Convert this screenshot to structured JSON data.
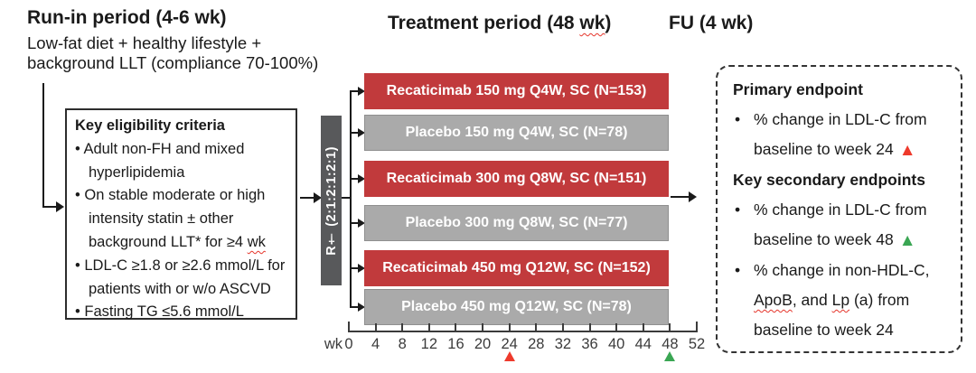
{
  "colors": {
    "recaticimab_red": "#c13a3c",
    "placebo_gray": "#aaaaaa",
    "randomization_gray": "#58595b",
    "triangle_red": "#ee3a2c",
    "triangle_green": "#3aa653",
    "squiggle_red": "#e5352b"
  },
  "header": {
    "run_in_title": "Run-in period (4-6 wk)",
    "run_in_line1": "Low-fat diet + healthy lifestyle +",
    "run_in_line2": "background LLT (compliance 70-100%)",
    "treatment_title_pre": "Treatment period (48 ",
    "treatment_title_wavy": "wk",
    "treatment_title_post": ")",
    "fu_title": "FU (4 wk)"
  },
  "eligibility": {
    "title": "Key eligibility criteria",
    "lines": [
      {
        "text": "• Adult non-FH and mixed"
      },
      {
        "text": "hyperlipidemia"
      },
      {
        "text": "• On stable moderate or high"
      },
      {
        "text": "intensity statin ± other"
      },
      {
        "pre": "background LLT* for ≥4 ",
        "wavy": "wk"
      },
      {
        "text": "• LDL-C ≥1.8 or ≥2.6 mmol/L for"
      },
      {
        "text": "patients with or w/o ASCVD"
      },
      {
        "text": "• Fasting TG ≤5.6 mmol/L"
      }
    ]
  },
  "randomization": {
    "label": "R† (2:1:2:1:2:1)"
  },
  "arms": [
    {
      "label": "Recaticimab 150 mg Q4W, SC (N=153)",
      "type": "recaticimab"
    },
    {
      "label": "Placebo 150 mg Q4W, SC (N=78)",
      "type": "placebo"
    },
    {
      "label": "Recaticimab 300 mg Q8W, SC (N=151)",
      "type": "recaticimab"
    },
    {
      "label": "Placebo 300 mg Q8W, SC (N=77)",
      "type": "placebo"
    },
    {
      "label": "Recaticimab 450 mg Q12W, SC (N=152)",
      "type": "recaticimab"
    },
    {
      "label": "Placebo 450 mg Q12W, SC (N=78)",
      "type": "placebo"
    }
  ],
  "timeline": {
    "unit_label": "wk",
    "weeks": [
      0,
      4,
      8,
      12,
      16,
      20,
      24,
      28,
      32,
      36,
      40,
      44,
      48,
      52
    ],
    "total_weeks": 52,
    "primary_marker_week": 24,
    "secondary_marker_week": 48
  },
  "endpoints": {
    "bullet": "•",
    "triangle": "▲",
    "primary_title": "Primary endpoint",
    "primary_line1": "% change in LDL-C from",
    "primary_line2": "baseline to week 24",
    "secondary_title": "Key secondary endpoints",
    "secondary1_line1": "% change in LDL-C from",
    "secondary1_line2": "baseline to week 48",
    "secondary2_line1": "% change in non-HDL-C,",
    "secondary2_line2_seg1": "ApoB",
    "secondary2_line2_seg2": ", and ",
    "secondary2_line2_seg3": "Lp",
    "secondary2_line2_seg4": " (a) from",
    "secondary2_line3": "baseline to week 24"
  }
}
